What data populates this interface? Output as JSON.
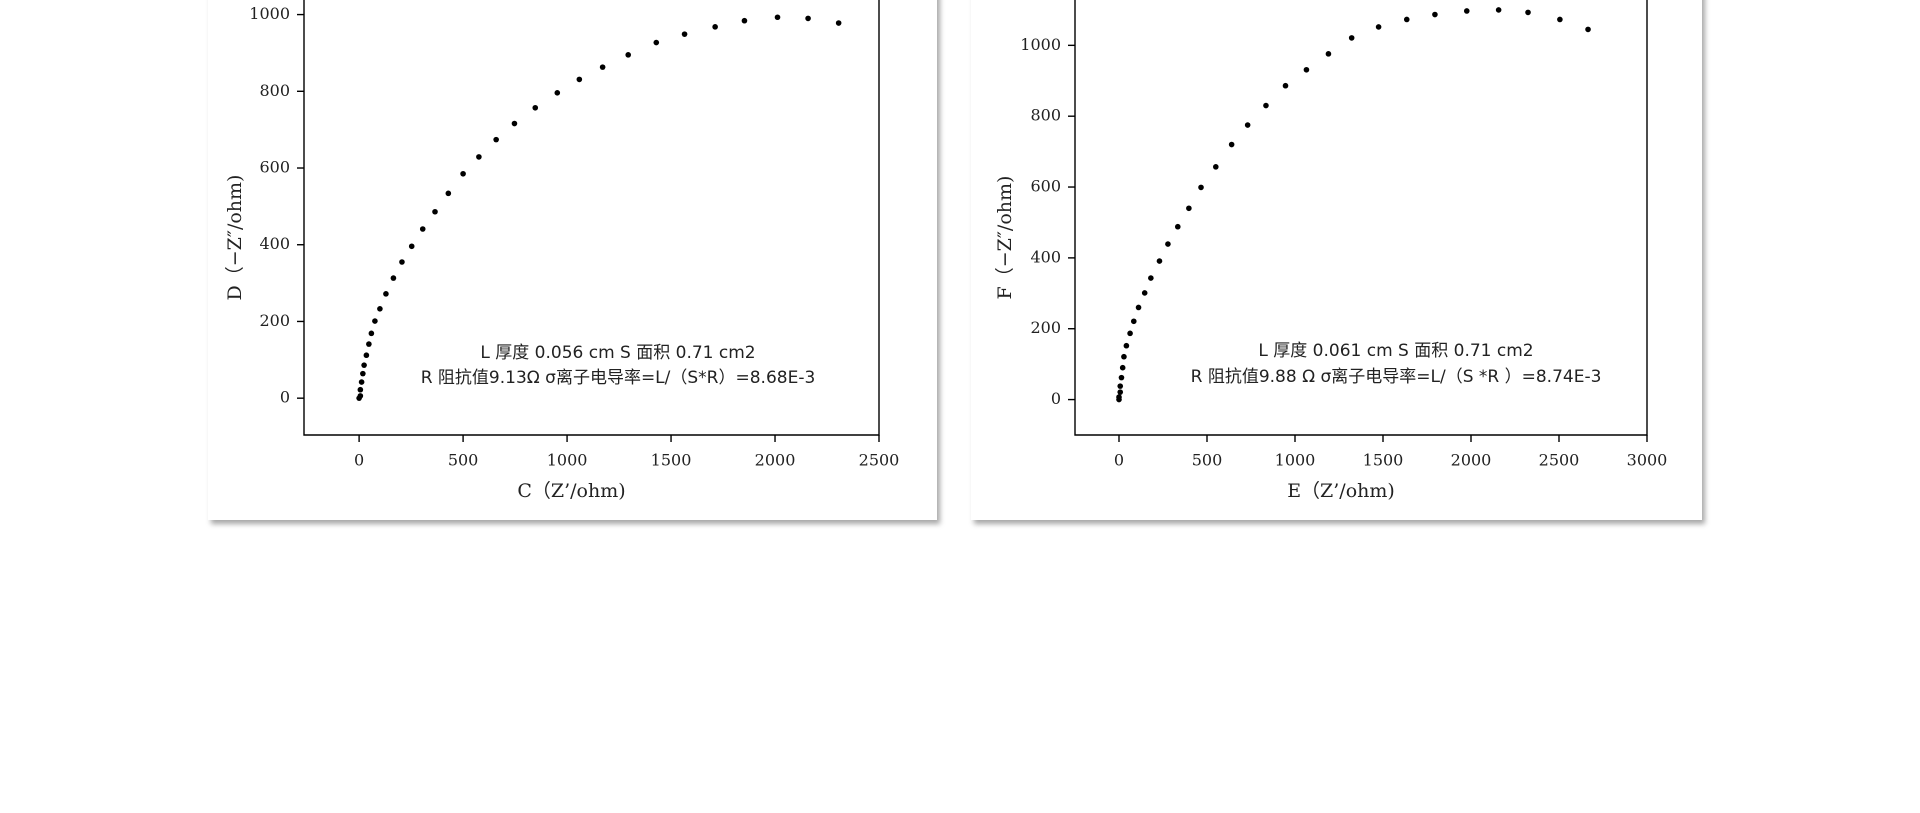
{
  "chart_data": [
    {
      "type": "scatter",
      "x_label": "C（Z’/ohm)",
      "y_label": "D（−Z″/ohm)",
      "annotations": [
        "L 厚度 0.056 cm S 面积 0.71 cm2",
        "R 阻抗值9.13Ω σ离子电导率=L/（S*R）=8.68E-3"
      ],
      "color": "#000000",
      "xlim": [
        -265,
        2500
      ],
      "ylim": [
        -96,
        1038
      ],
      "xticks": [
        0,
        500,
        1000,
        1500,
        2000,
        2500
      ],
      "yticks": [
        0,
        200,
        400,
        600,
        800,
        1000
      ],
      "x": [
        0,
        6,
        6,
        12,
        18,
        24,
        35,
        47,
        59,
        76,
        100,
        129,
        165,
        206,
        253,
        306,
        365,
        429,
        500,
        576,
        659,
        747,
        847,
        953,
        1059,
        1171,
        1294,
        1429,
        1565,
        1712,
        1853,
        2012,
        2159,
        2306
      ],
      "y": [
        0,
        6,
        22,
        42,
        64,
        86,
        112,
        141,
        169,
        201,
        233,
        272,
        313,
        355,
        396,
        441,
        486,
        534,
        585,
        629,
        674,
        716,
        757,
        796,
        831,
        863,
        895,
        927,
        949,
        968,
        984,
        993,
        990,
        978
      ]
    },
    {
      "type": "scatter",
      "x_label": "E（Z’/ohm)",
      "y_label": "F（−Z″/ohm)",
      "annotations": [
        "L 厚度 0.061 cm S 面积 0.71 cm2",
        "R 阻抗值9.88 Ω σ离子电导率=L/（S *R ）=8.74E-3"
      ],
      "color": "#000000",
      "xlim": [
        -250,
        3000
      ],
      "ylim": [
        -100,
        1128
      ],
      "xticks": [
        0,
        500,
        1000,
        1500,
        2000,
        2500,
        3000
      ],
      "yticks": [
        0,
        200,
        400,
        600,
        800,
        1000
      ],
      "x": [
        0,
        0,
        7,
        7,
        14,
        21,
        28,
        42,
        63,
        84,
        111,
        146,
        181,
        230,
        278,
        334,
        397,
        466,
        550,
        640,
        731,
        835,
        946,
        1065,
        1190,
        1322,
        1475,
        1635,
        1795,
        1976,
        2157,
        2324,
        2505,
        2665
      ],
      "y": [
        0,
        7,
        21,
        38,
        62,
        90,
        121,
        152,
        187,
        221,
        260,
        301,
        343,
        391,
        439,
        488,
        540,
        599,
        657,
        720,
        775,
        830,
        886,
        931,
        976,
        1021,
        1052,
        1073,
        1087,
        1097,
        1100,
        1093,
        1073,
        1045
      ]
    }
  ]
}
